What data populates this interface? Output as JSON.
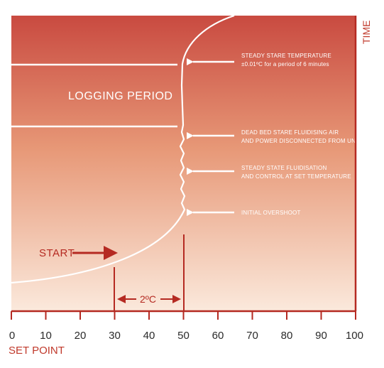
{
  "diagram": {
    "x_axis": {
      "ticks": [
        0,
        10,
        20,
        30,
        40,
        50,
        60,
        70,
        80,
        90,
        100
      ],
      "title": "SET POINT"
    },
    "y_axis_title": "TIME",
    "logging_period_label": "LOGGING PERIOD",
    "start_label": "START",
    "delta_label": "2ºC",
    "annotations": [
      {
        "line1": "STEADY STARE TEMPERATURE",
        "line2": "±0.01ºC for a period of 6 minutes"
      },
      {
        "line1": "DEAD BED STARE FLUIDISING AIR",
        "line2": "AND POWER DISCONNECTED FROM UNIT"
      },
      {
        "line1": "STEADY STATE FLUIDISATION",
        "line2": "AND CONTROL AT SET TEMPERATURE"
      },
      {
        "line1": "INITIAL OVERSHOOT",
        "line2": ""
      }
    ],
    "colors": {
      "gradient_top": "#c94a40",
      "gradient_bottom": "#fbe9dc",
      "axis": "#b52a22",
      "curve": "#ffffff"
    }
  }
}
